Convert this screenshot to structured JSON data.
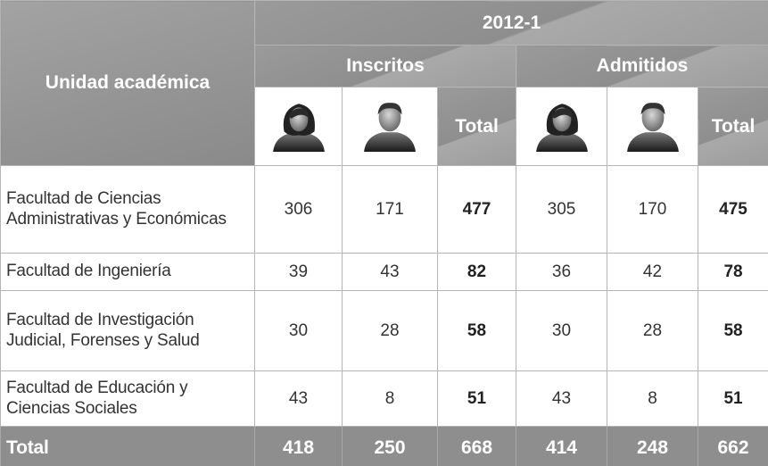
{
  "table": {
    "header": {
      "unit": "Unidad académica",
      "period": "2012-1",
      "groups": [
        {
          "name": "Inscritos",
          "total": "Total"
        },
        {
          "name": "Admitidos",
          "total": "Total"
        }
      ]
    },
    "rows": [
      {
        "label": "Facultad de Ciencias Administrativas y Económicas",
        "values": [
          306,
          171,
          477,
          305,
          170,
          475
        ]
      },
      {
        "label": "Facultad de Ingeniería",
        "values": [
          39,
          43,
          82,
          36,
          42,
          78
        ]
      },
      {
        "label": "Facultad de Investigación Judicial, Forenses y Salud",
        "values": [
          30,
          28,
          58,
          30,
          28,
          58
        ]
      },
      {
        "label": "Facultad de Educación y Ciencias Sociales",
        "values": [
          43,
          8,
          51,
          43,
          8,
          51
        ]
      }
    ],
    "total": {
      "label": "Total",
      "values": [
        418,
        250,
        668,
        414,
        248,
        662
      ]
    }
  }
}
